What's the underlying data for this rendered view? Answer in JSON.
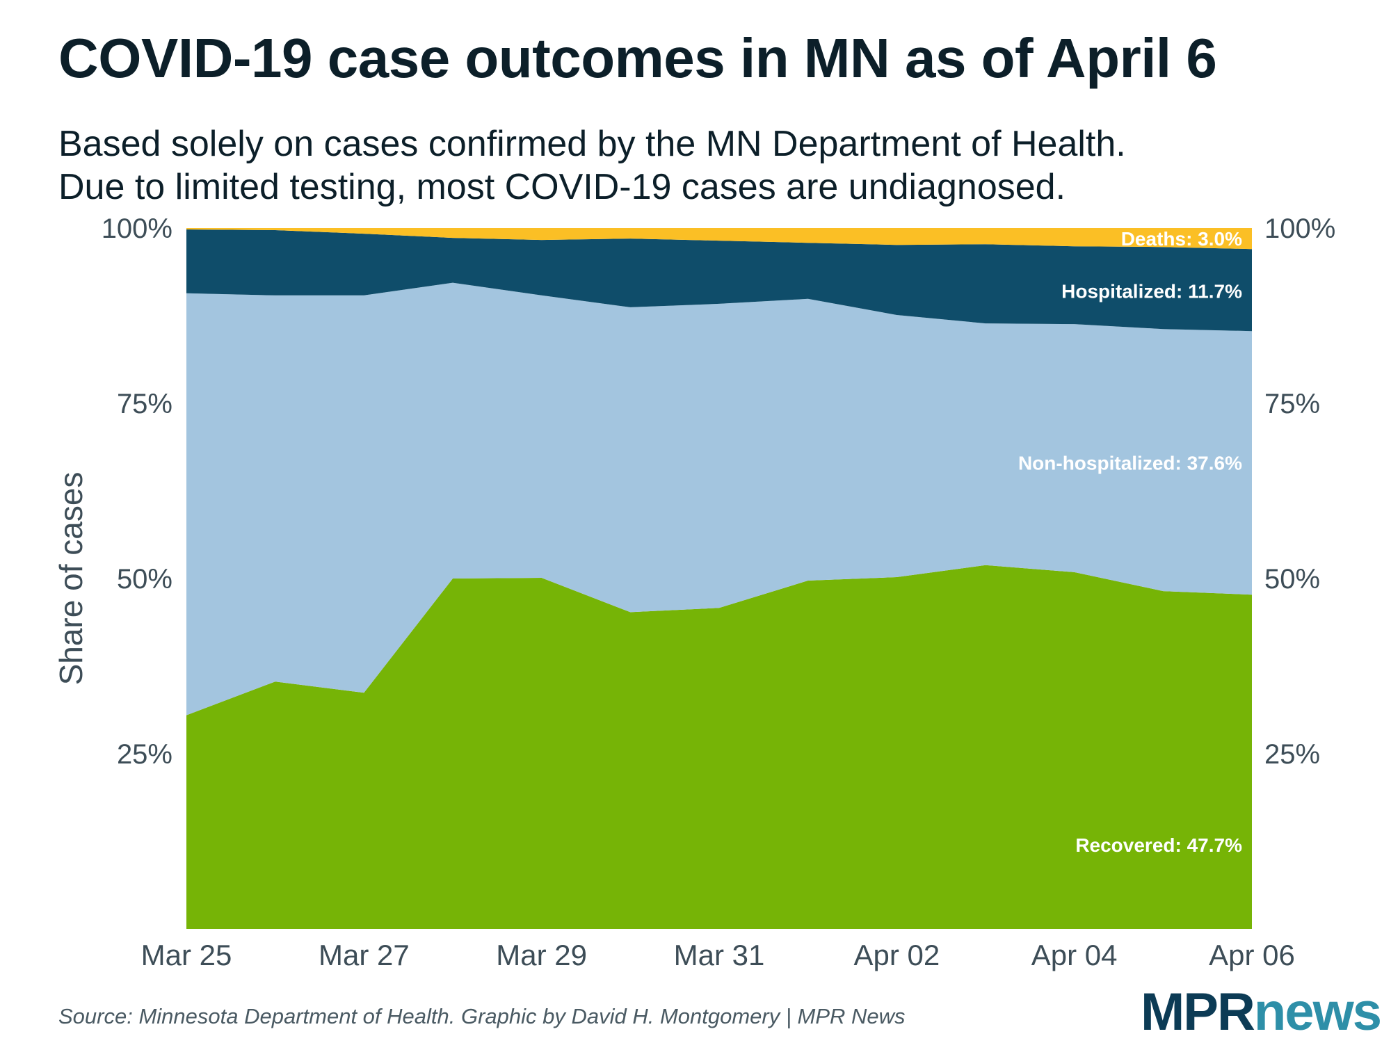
{
  "header": {
    "title": "COVID-19 case outcomes in MN as of April 6",
    "subtitle_line1": "Based solely on cases confirmed by the MN Department of Health.",
    "subtitle_line2": "Due to limited testing, most COVID-19 cases are undiagnosed."
  },
  "footer": {
    "source": "Source: Minnesota Department of Health. Graphic by David H. Montgomery | MPR News",
    "logo_mpr": "MPR",
    "logo_news": "news"
  },
  "colors": {
    "recovered": "#76b406",
    "non_hospitalized": "#a3c5df",
    "hospitalized": "#0f4d6a",
    "deaths": "#fbbf25",
    "axis_text": "#3d4d57"
  },
  "chart_data": {
    "type": "area",
    "stacked": true,
    "ylabel": "Share of cases",
    "ylim": [
      0,
      100
    ],
    "yticks": [
      25,
      50,
      75,
      100
    ],
    "ytick_labels": [
      "25%",
      "50%",
      "75%",
      "100%"
    ],
    "x": [
      "2020-03-25",
      "2020-03-26",
      "2020-03-27",
      "2020-03-28",
      "2020-03-29",
      "2020-03-30",
      "2020-03-31",
      "2020-04-01",
      "2020-04-02",
      "2020-04-03",
      "2020-04-04",
      "2020-04-05",
      "2020-04-06"
    ],
    "xtick_labels": [
      "Mar 25",
      "",
      "Mar 27",
      "",
      "Mar 29",
      "",
      "Mar 31",
      "",
      "Apr 02",
      "",
      "Apr 04",
      "",
      "Apr 06"
    ],
    "series": [
      {
        "name": "Recovered",
        "label": "Recovered: 47.7%",
        "color_key": "recovered",
        "values": [
          30.5,
          35.3,
          33.7,
          50.0,
          50.1,
          45.2,
          45.8,
          49.7,
          50.2,
          51.9,
          50.9,
          48.2,
          47.7
        ]
      },
      {
        "name": "Non-hospitalized",
        "label": "Non-hospitalized: 37.6%",
        "color_key": "non_hospitalized",
        "values": [
          60.2,
          55.1,
          56.7,
          42.2,
          40.3,
          43.5,
          43.4,
          40.2,
          37.4,
          34.5,
          35.4,
          37.4,
          37.6
        ]
      },
      {
        "name": "Hospitalized",
        "label": "Hospitalized: 11.7%",
        "color_key": "hospitalized",
        "values": [
          9.1,
          9.3,
          8.8,
          6.4,
          7.9,
          9.8,
          9.0,
          8.0,
          10.0,
          11.3,
          11.1,
          11.7,
          11.7
        ]
      },
      {
        "name": "Deaths",
        "label": "Deaths: 3.0%",
        "color_key": "deaths",
        "values": [
          0.2,
          0.3,
          0.8,
          1.4,
          1.7,
          1.5,
          1.8,
          2.1,
          2.4,
          2.3,
          2.6,
          2.7,
          3.0
        ]
      }
    ]
  }
}
